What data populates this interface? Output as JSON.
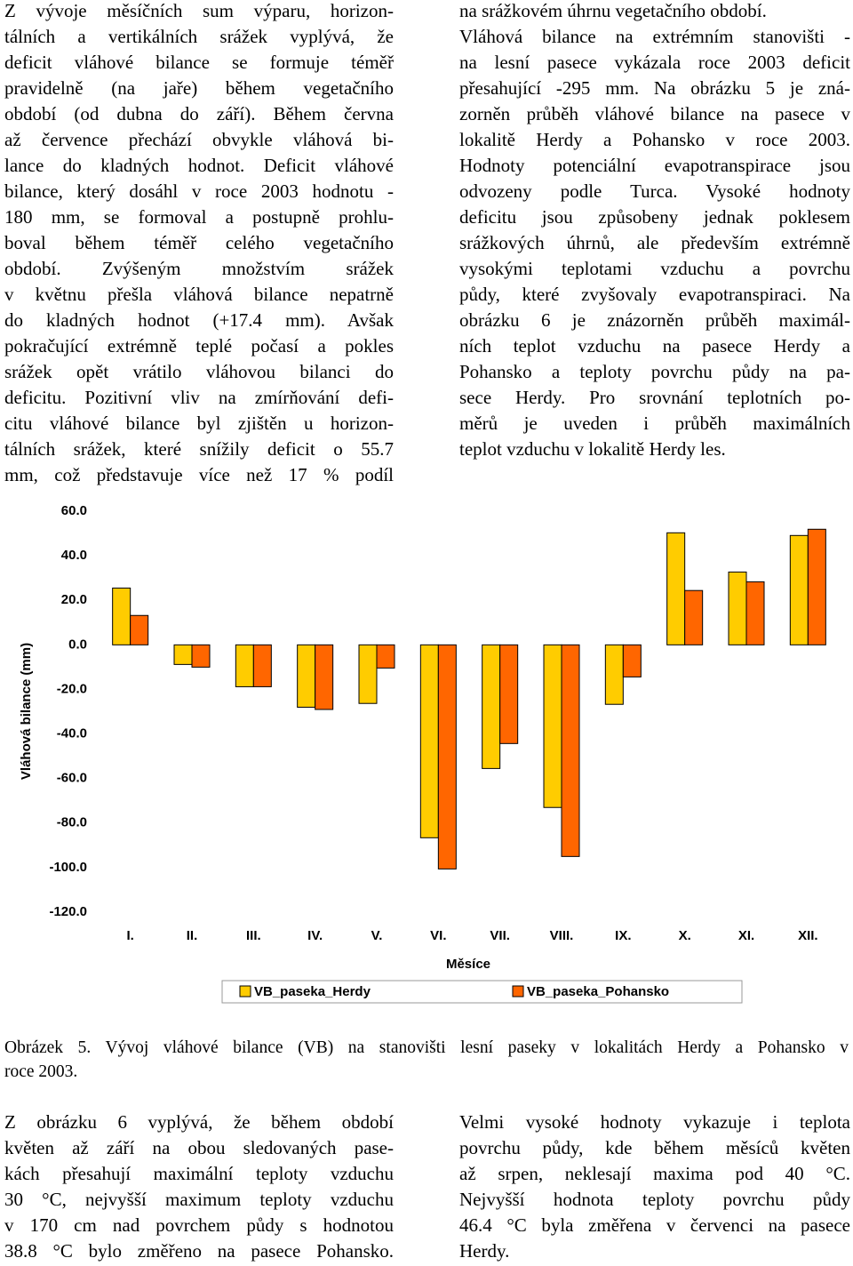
{
  "top": {
    "left": [
      "Z vývoje měsíčních sum výparu, horizon-",
      "tálních a vertikálních srážek vyplývá, že",
      "deficit vláhové bilance se formuje téměř",
      "pravidelně (na jaře) během vegetačního",
      "období (od dubna do září). Během června",
      "až července přechází obvykle vláhová bi-",
      "lance do kladných hodnot. Deficit vláhové",
      "bilance, který dosáhl v roce 2003 hodnotu -",
      "180 mm, se formoval a postupně prohlu-",
      "boval během téměř celého vegetačního",
      "období. Zvýšeným množstvím srážek",
      "v květnu přešla vláhová bilance nepatrně",
      "do kladných hodnot (+17.4 mm). Avšak",
      "pokračující extrémně teplé počasí a pokles",
      "srážek opět vrátilo vláhovou bilanci do",
      "deficitu. Pozitivní vliv na zmírňování defi-",
      "citu vláhové bilance byl zjištěn u horizon-",
      "tálních srážek, které snížily deficit o 55.7",
      "mm, což představuje více než 17 % podíl"
    ],
    "right": [
      "na srážkovém úhrnu vegetačního období.",
      "Vláhová bilance na extrémním stanovišti -",
      "na lesní pasece vykázala roce 2003 deficit",
      "přesahující -295 mm. Na obrázku 5 je zná-",
      "zorněn průběh vláhové bilance na pasece v",
      "lokalitě Herdy a Pohansko v roce 2003.",
      "Hodnoty potenciální evapotranspirace jsou",
      "odvozeny podle Turca. Vysoké hodnoty",
      "deficitu jsou způsobeny jednak poklesem",
      "srážkových úhrnů, ale především extrémně",
      "vysokými teplotami vzduchu a povrchu",
      "půdy, které zvyšovaly evapotranspiraci. Na",
      "obrázku 6 je znázorněn průběh maximál-",
      "ních teplot vzduchu na pasece Herdy a",
      "Pohansko a teploty povrchu půdy na pa-",
      "sece Herdy. Pro srovnání teplotních po-",
      "měrů je uveden i průběh maximálních",
      "teplot vzduchu v lokalitě Herdy les."
    ]
  },
  "chart_data": {
    "type": "bar",
    "ylabel": "Vláhová bilance (mm)",
    "xlabel": "Měsíce",
    "categories": [
      "I.",
      "II.",
      "III.",
      "IV.",
      "V.",
      "VI.",
      "VII.",
      "VIII.",
      "IX.",
      "X.",
      "XI.",
      "XII."
    ],
    "series": [
      {
        "name": "VB_paseka_Herdy",
        "color": "#ffcc00",
        "values": [
          25.5,
          -8.8,
          -18.8,
          -28,
          -26.3,
          -86.6,
          -55.5,
          -73,
          -26.7,
          50.3,
          32.7,
          49.1
        ]
      },
      {
        "name": "VB_paseka_Pohansko",
        "color": "#ff6600",
        "values": [
          13.2,
          -10,
          -18.8,
          -29,
          -10.4,
          -100.6,
          -44.3,
          -95,
          -14.4,
          24.4,
          28.3,
          51.9
        ]
      }
    ],
    "ylim": [
      -120,
      60
    ],
    "yticks": [
      {
        "value": 60,
        "label": "60.0"
      },
      {
        "value": 40,
        "label": "40.0"
      },
      {
        "value": 20,
        "label": "20.0"
      },
      {
        "value": 0,
        "label": "0.0"
      },
      {
        "value": -20,
        "label": "-20.0"
      },
      {
        "value": -40,
        "label": "-40.0"
      },
      {
        "value": -60,
        "label": "-60.0"
      },
      {
        "value": -80,
        "label": "-80.0"
      },
      {
        "value": -100,
        "label": "-100.0"
      },
      {
        "value": -120,
        "label": "-120.0"
      }
    ],
    "grid": false,
    "legend": "bottom"
  },
  "caption": [
    "Obrázek 5. Vývoj vláhové bilance (VB) na stanovišti lesní paseky v lokalitách Herdy a Pohansko v",
    "roce 2003."
  ],
  "bottom": {
    "left": [
      "Z obrázku 6 vyplývá, že během období",
      "květen až září na obou sledovaných pase-",
      "kách přesahují maximální teploty vzduchu",
      "30 °C, nejvyšší maximum teploty vzduchu",
      "v 170 cm nad povrchem půdy s hodnotou",
      "38.8 °C bylo změřeno na pasece Pohansko."
    ],
    "right": [
      "Velmi vysoké hodnoty vykazuje i teplota",
      "povrchu půdy, kde během měsíců květen",
      "až srpen, neklesají maxima pod 40 °C.",
      "Nejvyšší hodnota teploty povrchu půdy",
      "46.4 °C byla změřena v červenci na pasece",
      "Herdy."
    ]
  }
}
